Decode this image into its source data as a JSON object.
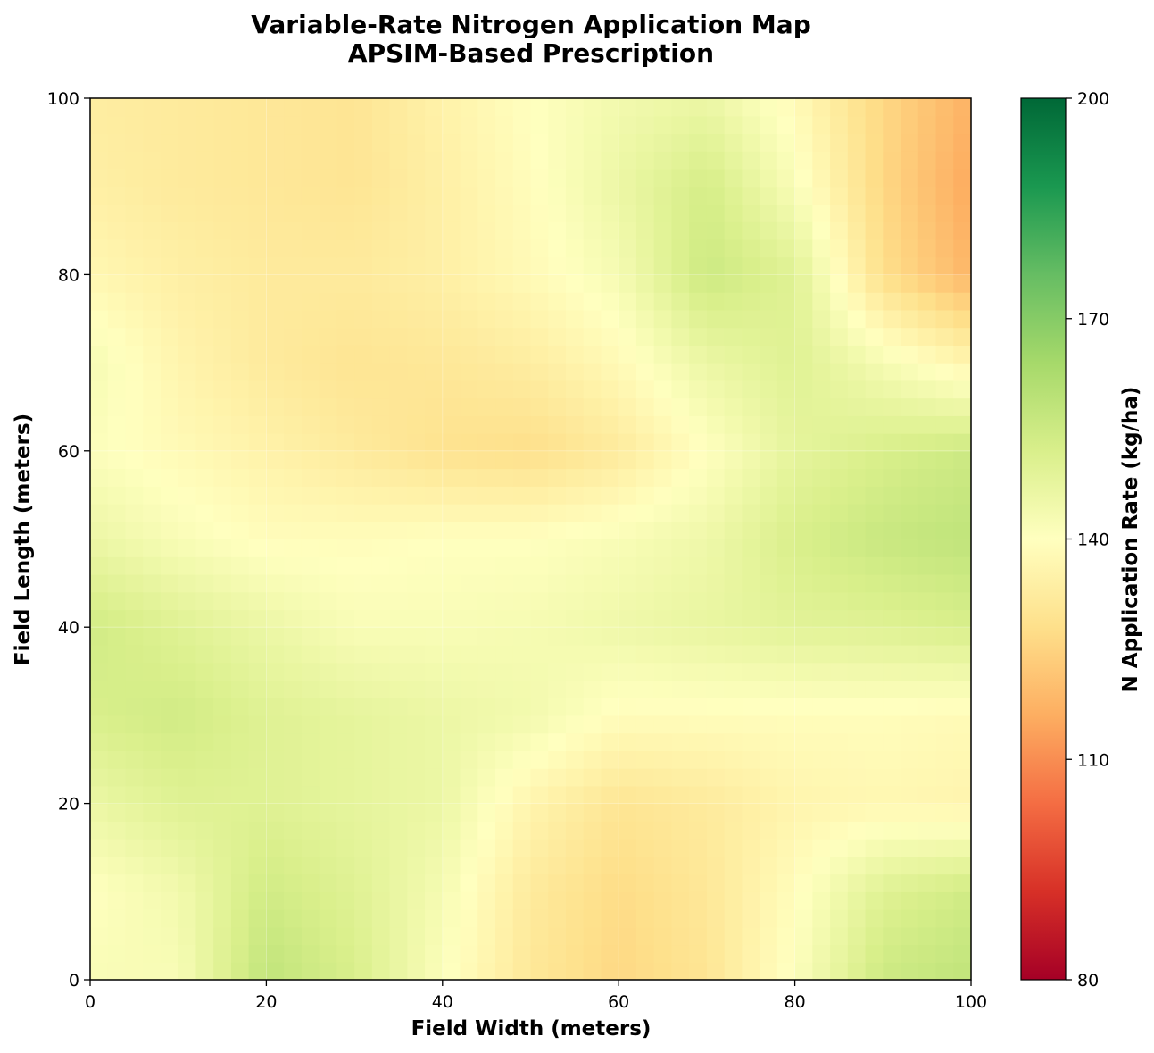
{
  "chart_data": {
    "type": "heatmap",
    "title": "Variable-Rate Nitrogen Application Map",
    "subtitle": "APSIM-Based Prescription",
    "xlabel": "Field Width (meters)",
    "ylabel": "Field Length (meters)",
    "xlim": [
      0,
      100
    ],
    "ylim": [
      0,
      100
    ],
    "xticks": [
      0,
      20,
      40,
      60,
      80,
      100
    ],
    "yticks": [
      0,
      20,
      40,
      60,
      80,
      100
    ],
    "grid": true,
    "colormap": "RdYlGn",
    "colorbar": {
      "label": "N Application Rate (kg/ha)",
      "range": [
        80,
        200
      ],
      "ticks": [
        80,
        110,
        140,
        170,
        200
      ],
      "colors": [
        "#a50026",
        "#d73027",
        "#f46d43",
        "#fdae61",
        "#fee08b",
        "#ffffbf",
        "#d9ef8b",
        "#a6d96a",
        "#66bd63",
        "#1a9850",
        "#006837"
      ]
    },
    "grid_x": [
      0,
      10,
      20,
      30,
      40,
      50,
      60,
      70,
      80,
      90,
      100
    ],
    "grid_y": [
      0,
      10,
      20,
      30,
      40,
      50,
      60,
      70,
      80,
      90,
      100
    ],
    "values": [
      [
        142,
        142,
        158,
        152,
        141,
        131,
        126,
        130,
        141,
        155,
        158
      ],
      [
        140,
        144,
        154,
        150,
        143,
        132,
        127,
        131,
        139,
        150,
        154
      ],
      [
        146,
        150,
        150,
        148,
        146,
        136,
        130,
        132,
        136,
        137,
        136
      ],
      [
        152,
        154,
        150,
        148,
        146,
        144,
        139,
        139,
        139,
        139,
        138
      ],
      [
        154,
        150,
        146,
        142,
        142,
        143,
        145,
        147,
        149,
        150,
        152
      ],
      [
        146,
        142,
        139,
        139,
        140,
        140,
        142,
        145,
        152,
        156,
        158
      ],
      [
        141,
        138,
        135,
        132,
        129,
        128,
        132,
        140,
        148,
        152,
        155
      ],
      [
        143,
        136,
        132,
        130,
        131,
        133,
        138,
        146,
        150,
        143,
        136
      ],
      [
        137,
        134,
        132,
        132,
        134,
        138,
        143,
        155,
        150,
        128,
        118
      ],
      [
        134,
        132,
        131,
        130,
        134,
        139,
        146,
        153,
        142,
        126,
        115
      ],
      [
        133,
        132,
        131,
        130,
        135,
        140,
        144,
        146,
        138,
        126,
        117
      ]
    ]
  }
}
